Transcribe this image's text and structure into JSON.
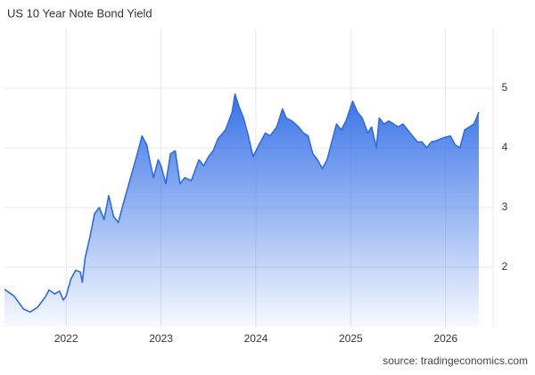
{
  "chart_data": {
    "type": "area",
    "title": "US 10 Year Note Bond Yield",
    "source": "source: tradingeconomics.com",
    "x": [
      2021.35,
      2021.45,
      2021.55,
      2021.62,
      2021.7,
      2021.78,
      2021.82,
      2021.88,
      2021.93,
      2021.97,
      2022.0,
      2022.05,
      2022.1,
      2022.15,
      2022.17,
      2022.2,
      2022.25,
      2022.3,
      2022.35,
      2022.4,
      2022.45,
      2022.5,
      2022.55,
      2022.6,
      2022.68,
      2022.75,
      2022.8,
      2022.85,
      2022.88,
      2022.92,
      2022.97,
      2023.0,
      2023.05,
      2023.1,
      2023.15,
      2023.2,
      2023.25,
      2023.32,
      2023.4,
      2023.45,
      2023.5,
      2023.55,
      2023.6,
      2023.68,
      2023.75,
      2023.78,
      2023.82,
      2023.87,
      2023.92,
      2023.97,
      2024.0,
      2024.05,
      2024.1,
      2024.15,
      2024.22,
      2024.28,
      2024.32,
      2024.38,
      2024.45,
      2024.5,
      2024.55,
      2024.6,
      2024.65,
      2024.7,
      2024.75,
      2024.8,
      2024.85,
      2024.9,
      2024.95,
      2025.02,
      2025.07,
      2025.12,
      2025.18,
      2025.22,
      2025.27,
      2025.3,
      2025.35,
      2025.4,
      2025.45,
      2025.5,
      2025.55,
      2025.6,
      2025.65,
      2025.7,
      2025.75,
      2025.8,
      2025.85,
      2025.9,
      2025.95,
      2026.0,
      2026.05,
      2026.1,
      2026.15,
      2026.2,
      2026.25,
      2026.3,
      2026.35
    ],
    "series": [
      {
        "name": "US 10 Year Note Bond Yield",
        "color": "#2e6be6",
        "values": [
          1.63,
          1.52,
          1.3,
          1.25,
          1.33,
          1.5,
          1.62,
          1.55,
          1.6,
          1.45,
          1.52,
          1.8,
          1.95,
          1.92,
          1.75,
          2.15,
          2.5,
          2.9,
          3.0,
          2.8,
          3.2,
          2.85,
          2.75,
          3.05,
          3.5,
          3.9,
          4.2,
          4.05,
          3.8,
          3.5,
          3.8,
          3.7,
          3.4,
          3.9,
          3.95,
          3.4,
          3.5,
          3.45,
          3.8,
          3.7,
          3.85,
          3.95,
          4.15,
          4.3,
          4.6,
          4.9,
          4.7,
          4.5,
          4.2,
          3.85,
          3.95,
          4.1,
          4.25,
          4.2,
          4.35,
          4.65,
          4.5,
          4.45,
          4.35,
          4.25,
          4.2,
          3.9,
          3.8,
          3.65,
          3.8,
          4.1,
          4.4,
          4.3,
          4.45,
          4.78,
          4.6,
          4.5,
          4.25,
          4.35,
          4.0,
          4.5,
          4.4,
          4.45,
          4.4,
          4.35,
          4.4,
          4.3,
          4.2,
          4.1,
          4.1,
          4.0,
          4.1,
          4.12,
          4.15,
          4.18,
          4.2,
          4.05,
          4.0,
          4.3,
          4.35,
          4.4,
          4.6
        ]
      }
    ],
    "xlim": [
      2021.35,
      2026.5
    ],
    "xticks": [
      2022,
      2023,
      2024,
      2025,
      2026
    ],
    "ylim": [
      1,
      6
    ],
    "yticks": [
      2,
      3,
      4,
      5
    ],
    "grid": true
  }
}
